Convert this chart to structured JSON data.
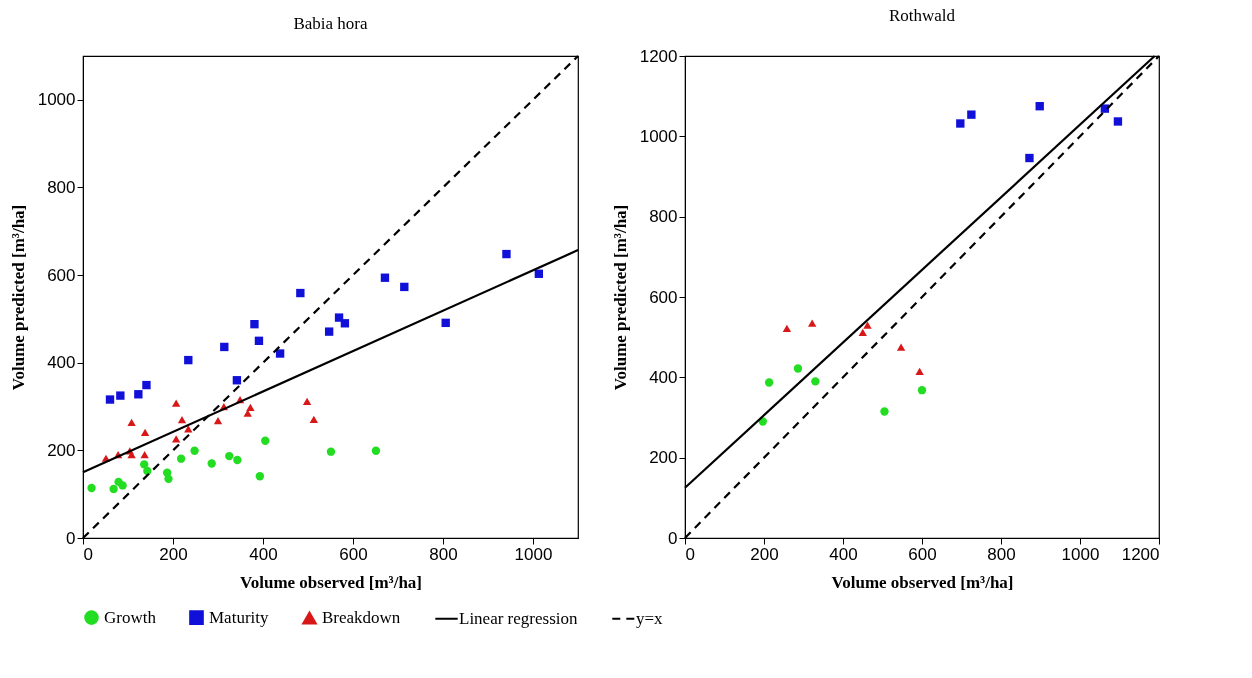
{
  "chart_data": [
    {
      "type": "scatter",
      "title": "Babia hora",
      "xlabel": "Volume observed [m³/ha]",
      "ylabel": "Volume predicted [m³/ha]",
      "xlim": [
        0,
        1100
      ],
      "ylim": [
        0,
        1100
      ],
      "xticks": [
        0,
        200,
        400,
        600,
        800,
        1000
      ],
      "yticks": [
        0,
        200,
        400,
        600,
        800,
        1000
      ],
      "grid": false,
      "legend": "bottom",
      "series": [
        {
          "name": "Growth",
          "color": "#22dd22",
          "marker": "circle",
          "x": [
            19,
            68,
            79,
            88,
            136,
            143,
            187,
            190,
            218,
            248,
            286,
            325,
            343,
            393,
            405,
            551,
            651
          ],
          "values": [
            114,
            112,
            128,
            120,
            168,
            153,
            149,
            135,
            181,
            199,
            170,
            187,
            178,
            141,
            222,
            197,
            199
          ]
        },
        {
          "name": "Maturity",
          "color": "#1010d8",
          "marker": "square",
          "x": [
            60,
            83,
            123,
            141,
            234,
            314,
            342,
            381,
            391,
            438,
            483,
            547,
            569,
            582,
            671,
            714,
            806,
            941,
            1013
          ],
          "values": [
            316,
            325,
            328,
            349,
            406,
            436,
            360,
            488,
            450,
            421,
            559,
            471,
            503,
            490,
            594,
            573,
            491,
            648,
            603
          ]
        },
        {
          "name": "Breakdown",
          "color": "#d81818",
          "marker": "triangle",
          "x": [
            51,
            78,
            108,
            104,
            108,
            138,
            137,
            207,
            207,
            220,
            234,
            300,
            313,
            349,
            366,
            372,
            498,
            513
          ],
          "values": [
            182,
            190,
            264,
            199,
            190,
            241,
            190,
            308,
            226,
            270,
            249,
            268,
            300,
            316,
            285,
            298,
            312,
            271
          ]
        },
        {
          "name": "Linear regression",
          "type": "line",
          "color": "#000000",
          "line_style": "solid",
          "x": [
            0,
            1100
          ],
          "values": [
            150,
            657
          ]
        },
        {
          "name": "y=x",
          "type": "line",
          "color": "#000000",
          "line_style": "dashed",
          "x": [
            0,
            1100
          ],
          "values": [
            0,
            1100
          ]
        }
      ]
    },
    {
      "type": "scatter",
      "title": "Rothwald",
      "xlabel": "Volume observed [m³/ha]",
      "ylabel": "Volume predicted [m³/ha]",
      "xlim": [
        0,
        1200
      ],
      "ylim": [
        0,
        1200
      ],
      "xticks": [
        0,
        200,
        400,
        600,
        800,
        1000,
        1200
      ],
      "yticks": [
        0,
        200,
        400,
        600,
        800,
        1000,
        1200
      ],
      "grid": false,
      "series": [
        {
          "name": "Growth",
          "color": "#22dd22",
          "marker": "circle",
          "x": [
            197,
            213,
            286,
            330,
            505,
            600
          ],
          "values": [
            290,
            387,
            422,
            390,
            315,
            368
          ]
        },
        {
          "name": "Maturity",
          "color": "#1010d8",
          "marker": "square",
          "x": [
            697,
            725,
            872,
            898,
            1063,
            1096
          ],
          "values": [
            1032,
            1054,
            946,
            1075,
            1069,
            1037
          ]
        },
        {
          "name": "Breakdown",
          "color": "#d81818",
          "marker": "triangle",
          "x": [
            258,
            322,
            450,
            462,
            547,
            594
          ],
          "values": [
            522,
            535,
            512,
            530,
            475,
            415
          ]
        },
        {
          "name": "Linear regression",
          "type": "line",
          "color": "#000000",
          "line_style": "solid",
          "x": [
            0,
            1189
          ],
          "values": [
            125,
            1200
          ]
        },
        {
          "name": "y=x",
          "type": "line",
          "color": "#000000",
          "line_style": "dashed",
          "x": [
            0,
            1200
          ],
          "values": [
            0,
            1200
          ]
        }
      ]
    }
  ]
}
